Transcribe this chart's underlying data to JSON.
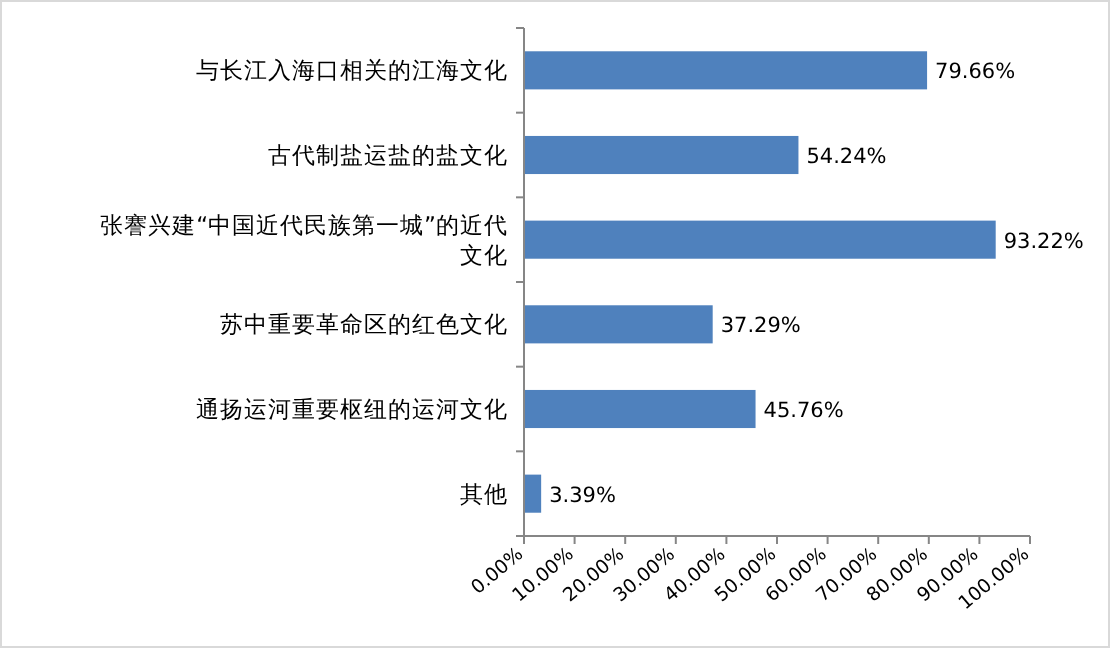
{
  "chart_data": {
    "type": "bar",
    "orientation": "horizontal",
    "categories": [
      "与长江入海口相关的江海文化",
      "古代制盐运盐的盐文化",
      "张謇兴建“中国近代民族第一城”的近代文化",
      "苏中重要革命区的红色文化",
      "通扬运河重要枢纽的运河文化",
      "其他"
    ],
    "values": [
      79.66,
      54.24,
      93.22,
      37.29,
      45.76,
      3.39
    ],
    "value_labels": [
      "79.66%",
      "54.24%",
      "93.22%",
      "37.29%",
      "45.76%",
      "3.39%"
    ],
    "color": "#4f81bd",
    "xlim": [
      0,
      100
    ],
    "xticks": [
      {
        "value": 0,
        "label": "0.00%"
      },
      {
        "value": 10,
        "label": "10.00%"
      },
      {
        "value": 20,
        "label": "20.00%"
      },
      {
        "value": 30,
        "label": "30.00%"
      },
      {
        "value": 40,
        "label": "40.00%"
      },
      {
        "value": 50,
        "label": "50.00%"
      },
      {
        "value": 60,
        "label": "60.00%"
      },
      {
        "value": 70,
        "label": "70.00%"
      },
      {
        "value": 80,
        "label": "80.00%"
      },
      {
        "value": 90,
        "label": "90.00%"
      },
      {
        "value": 100,
        "label": "100.00%"
      }
    ],
    "grid": false
  }
}
